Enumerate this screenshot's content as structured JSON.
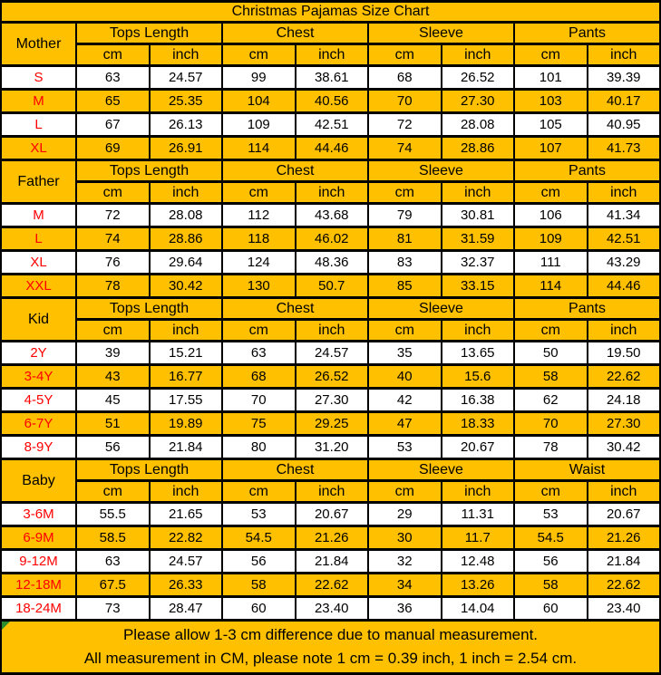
{
  "chart_data": {
    "type": "table",
    "title": "Christmas Pajamas Size Chart",
    "unit_labels": [
      "cm",
      "inch"
    ],
    "sections": [
      {
        "label": "Mother",
        "columns": [
          "Tops Length",
          "Chest",
          "Sleeve",
          "Pants"
        ],
        "rows": [
          {
            "size": "S",
            "values": [
              "63",
              "24.57",
              "99",
              "38.61",
              "68",
              "26.52",
              "101",
              "39.39"
            ]
          },
          {
            "size": "M",
            "values": [
              "65",
              "25.35",
              "104",
              "40.56",
              "70",
              "27.30",
              "103",
              "40.17"
            ]
          },
          {
            "size": "L",
            "values": [
              "67",
              "26.13",
              "109",
              "42.51",
              "72",
              "28.08",
              "105",
              "40.95"
            ]
          },
          {
            "size": "XL",
            "values": [
              "69",
              "26.91",
              "114",
              "44.46",
              "74",
              "28.86",
              "107",
              "41.73"
            ]
          }
        ]
      },
      {
        "label": "Father",
        "columns": [
          "Tops Length",
          "Chest",
          "Sleeve",
          "Pants"
        ],
        "rows": [
          {
            "size": "M",
            "values": [
              "72",
              "28.08",
              "112",
              "43.68",
              "79",
              "30.81",
              "106",
              "41.34"
            ]
          },
          {
            "size": "L",
            "values": [
              "74",
              "28.86",
              "118",
              "46.02",
              "81",
              "31.59",
              "109",
              "42.51"
            ]
          },
          {
            "size": "XL",
            "values": [
              "76",
              "29.64",
              "124",
              "48.36",
              "83",
              "32.37",
              "111",
              "43.29"
            ]
          },
          {
            "size": "XXL",
            "values": [
              "78",
              "30.42",
              "130",
              "50.7",
              "85",
              "33.15",
              "114",
              "44.46"
            ]
          }
        ]
      },
      {
        "label": "Kid",
        "columns": [
          "Tops Length",
          "Chest",
          "Sleeve",
          "Pants"
        ],
        "rows": [
          {
            "size": "2Y",
            "values": [
              "39",
              "15.21",
              "63",
              "24.57",
              "35",
              "13.65",
              "50",
              "19.50"
            ]
          },
          {
            "size": "3-4Y",
            "values": [
              "43",
              "16.77",
              "68",
              "26.52",
              "40",
              "15.6",
              "58",
              "22.62"
            ]
          },
          {
            "size": "4-5Y",
            "values": [
              "45",
              "17.55",
              "70",
              "27.30",
              "42",
              "16.38",
              "62",
              "24.18"
            ]
          },
          {
            "size": "6-7Y",
            "values": [
              "51",
              "19.89",
              "75",
              "29.25",
              "47",
              "18.33",
              "70",
              "27.30"
            ]
          },
          {
            "size": "8-9Y",
            "values": [
              "56",
              "21.84",
              "80",
              "31.20",
              "53",
              "20.67",
              "78",
              "30.42"
            ]
          }
        ]
      },
      {
        "label": "Baby",
        "columns": [
          "Tops Length",
          "Chest",
          "Sleeve",
          "Waist"
        ],
        "rows": [
          {
            "size": "3-6M",
            "values": [
              "55.5",
              "21.65",
              "53",
              "20.67",
              "29",
              "11.31",
              "53",
              "20.67"
            ]
          },
          {
            "size": "6-9M",
            "values": [
              "58.5",
              "22.82",
              "54.5",
              "21.26",
              "30",
              "11.7",
              "54.5",
              "21.26"
            ]
          },
          {
            "size": "9-12M",
            "values": [
              "63",
              "24.57",
              "56",
              "21.84",
              "32",
              "12.48",
              "56",
              "21.84"
            ]
          },
          {
            "size": "12-18M",
            "values": [
              "67.5",
              "26.33",
              "58",
              "22.62",
              "34",
              "13.26",
              "58",
              "22.62"
            ]
          },
          {
            "size": "18-24M",
            "values": [
              "73",
              "28.47",
              "60",
              "23.40",
              "36",
              "14.04",
              "60",
              "23.40"
            ]
          }
        ]
      }
    ],
    "footer_lines": [
      "Please allow 1-3 cm difference due to manual measurement.",
      "All measurement in CM, please note 1 cm = 0.39 inch, 1 inch = 2.54 cm."
    ]
  },
  "colors": {
    "gold": "#FFC000",
    "white": "#FFFFFF",
    "red": "#FF0000",
    "black": "#000000",
    "indicator_green": "#2E8B2E"
  }
}
